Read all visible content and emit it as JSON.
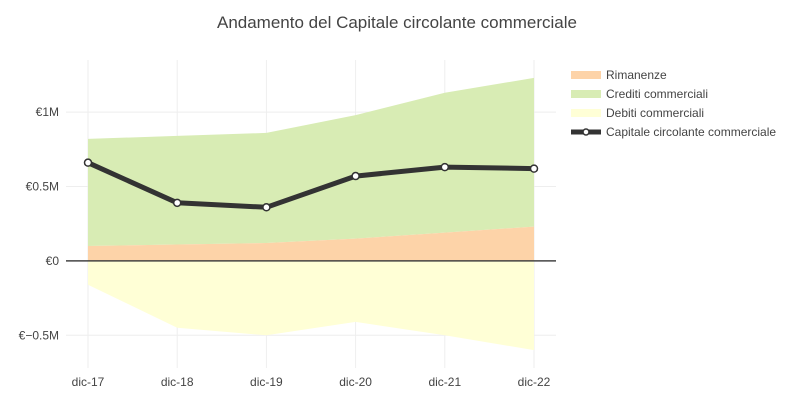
{
  "chart_data": {
    "type": "area",
    "title": "Andamento del Capitale circolante commerciale",
    "categories": [
      "dic-17",
      "dic-18",
      "dic-19",
      "dic-20",
      "dic-21",
      "dic-22"
    ],
    "ylim": [
      -0.72,
      1.35
    ],
    "y_ticks": [
      {
        "value": 1.0,
        "label": "€1M"
      },
      {
        "value": 0.5,
        "label": "€0.5M"
      },
      {
        "value": 0.0,
        "label": "€0"
      },
      {
        "value": -0.5,
        "label": "€−0.5M"
      }
    ],
    "grid": true,
    "legend_position": "right",
    "series": [
      {
        "name": "Rimanenze",
        "kind": "area",
        "color": "#fdd3a8",
        "values": [
          0.1,
          0.11,
          0.12,
          0.15,
          0.19,
          0.23
        ]
      },
      {
        "name": "Crediti commerciali",
        "kind": "area_stacked",
        "color": "#d8ecb4",
        "values": [
          0.72,
          0.73,
          0.74,
          0.83,
          0.94,
          1.0
        ]
      },
      {
        "name": "Debiti commerciali",
        "kind": "area",
        "color": "#ffffd6",
        "values": [
          -0.16,
          -0.45,
          -0.5,
          -0.41,
          -0.5,
          -0.6
        ]
      },
      {
        "name": "Capitale circolante commerciale",
        "kind": "line",
        "color": "#333333",
        "values": [
          0.66,
          0.39,
          0.36,
          0.57,
          0.63,
          0.62
        ]
      }
    ]
  }
}
